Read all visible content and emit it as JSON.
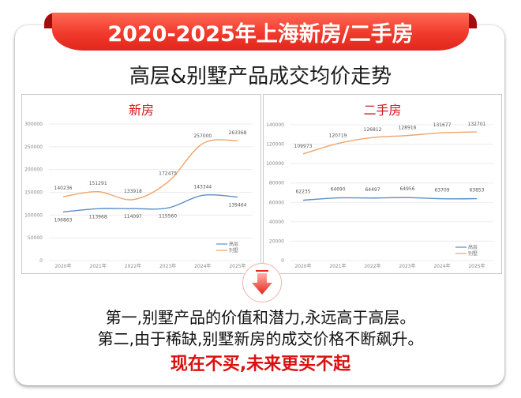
{
  "header": {
    "ribbon_title": "2020-2025年上海新房/二手房",
    "subtitle": "高层&别墅产品成交均价走势",
    "ribbon_color": "#f03a2c"
  },
  "charts": {
    "new": {
      "title": "新房"
    },
    "second": {
      "title": "二手房"
    }
  },
  "legend": {
    "gaoceng": "高层",
    "bieshu": "别墅"
  },
  "colors": {
    "gaoceng": "#5b8fc7",
    "bieshu": "#f0a46a",
    "accent": "#d9110f"
  },
  "arrow_icon": "down-arrow-icon",
  "conclusions": {
    "line1": "第一,别墅产品的价值和潜力,永远高于高层。",
    "line2": "第二,由于稀缺,别墅新房的成交价格不断飙升。",
    "cta": "现在不买,未来更买不起"
  },
  "chart_data": [
    {
      "type": "line",
      "title": "新房",
      "categories": [
        "2020年",
        "2021年",
        "2022年",
        "2023年",
        "2024年",
        "2025年"
      ],
      "series": [
        {
          "name": "高层",
          "values": [
            106863,
            113968,
            114097,
            115560,
            143344,
            139464
          ],
          "color": "#5b8fc7"
        },
        {
          "name": "别墅",
          "values": [
            140236,
            151291,
            133918,
            172475,
            257000,
            263368
          ],
          "color": "#f0a46a"
        }
      ],
      "yticks": [
        0,
        50000,
        100000,
        150000,
        200000,
        250000,
        300000
      ],
      "ylim": [
        0,
        300000
      ],
      "xlabel": "",
      "ylabel": "",
      "grid": true,
      "legend_position": "bottom-right"
    },
    {
      "type": "line",
      "title": "二手房",
      "categories": [
        "2020年",
        "2021年",
        "2022年",
        "2023年",
        "2024年",
        "2025年"
      ],
      "series": [
        {
          "name": "高层",
          "values": [
            62235,
            64690,
            64497,
            64956,
            63709,
            63853
          ],
          "color": "#5b8fc7"
        },
        {
          "name": "别墅",
          "values": [
            109973,
            120719,
            126812,
            128916,
            131677,
            132701
          ],
          "color": "#f0a46a"
        }
      ],
      "yticks": [
        0,
        20000,
        40000,
        60000,
        80000,
        100000,
        120000,
        140000
      ],
      "ylim": [
        0,
        140000
      ],
      "xlabel": "",
      "ylabel": "",
      "grid": true,
      "legend_position": "bottom-right"
    }
  ]
}
